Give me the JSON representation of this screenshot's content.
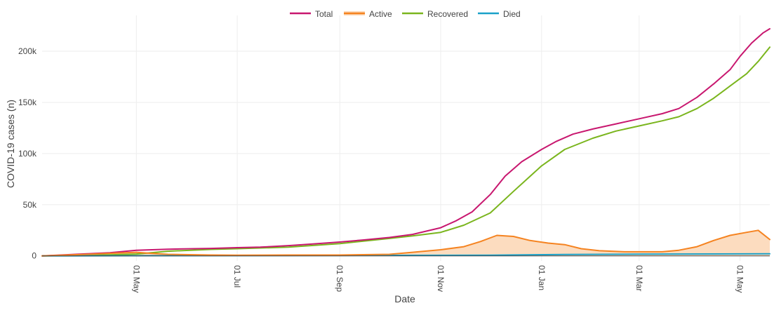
{
  "chart_data": {
    "type": "line",
    "title": "",
    "xlabel": "Date",
    "ylabel": "COVID-19 cases (n)",
    "x_ticks": [
      "01 May",
      "01 Jul",
      "01 Sep",
      "01 Nov",
      "01 Jan",
      "01 Mar",
      "01 May"
    ],
    "x_tick_dates": [
      "2020-05-01",
      "2020-07-01",
      "2020-09-01",
      "2020-11-01",
      "2021-01-01",
      "2021-03-01",
      "2021-05-01"
    ],
    "y_ticks": [
      0,
      50000,
      100000,
      150000,
      200000
    ],
    "y_tick_labels": [
      "0",
      "50k",
      "100k",
      "150k",
      "200k"
    ],
    "xlim": [
      "2020-03-05",
      "2021-05-19"
    ],
    "ylim": [
      -5000,
      235000
    ],
    "grid": true,
    "legend_position": "top-center",
    "colors": {
      "Total": "#c8176f",
      "Active": "#f58320",
      "Active_fill": "#fcd8b8",
      "Recovered": "#7ab51d",
      "Died": "#1aa1c9"
    },
    "series": [
      {
        "name": "Total",
        "x": [
          "2020-03-05",
          "2020-04-01",
          "2020-04-15",
          "2020-05-01",
          "2020-05-20",
          "2020-06-15",
          "2020-07-01",
          "2020-07-15",
          "2020-08-01",
          "2020-08-15",
          "2020-09-01",
          "2020-09-15",
          "2020-10-01",
          "2020-10-15",
          "2020-11-01",
          "2020-11-10",
          "2020-11-20",
          "2020-12-01",
          "2020-12-10",
          "2020-12-20",
          "2021-01-01",
          "2021-01-10",
          "2021-01-20",
          "2021-02-01",
          "2021-02-15",
          "2021-03-01",
          "2021-03-15",
          "2021-03-25",
          "2021-04-05",
          "2021-04-15",
          "2021-04-25",
          "2021-05-01",
          "2021-05-08",
          "2021-05-15",
          "2021-05-19"
        ],
        "y": [
          0,
          2000,
          3000,
          5500,
          6500,
          7300,
          8000,
          8500,
          10000,
          11500,
          13500,
          15500,
          18000,
          21000,
          27500,
          34000,
          43000,
          60000,
          78000,
          92000,
          104000,
          112000,
          119000,
          124000,
          129000,
          134000,
          139000,
          144000,
          155000,
          168000,
          182000,
          195000,
          208000,
          218000,
          222000
        ]
      },
      {
        "name": "Active",
        "x": [
          "2020-03-05",
          "2020-04-01",
          "2020-04-20",
          "2020-05-01",
          "2020-05-10",
          "2020-05-20",
          "2020-06-15",
          "2020-07-01",
          "2020-08-01",
          "2020-09-01",
          "2020-10-01",
          "2020-10-15",
          "2020-11-01",
          "2020-11-15",
          "2020-11-25",
          "2020-12-05",
          "2020-12-15",
          "2020-12-25",
          "2021-01-05",
          "2021-01-15",
          "2021-01-25",
          "2021-02-05",
          "2021-02-20",
          "2021-03-01",
          "2021-03-15",
          "2021-03-25",
          "2021-04-05",
          "2021-04-15",
          "2021-04-25",
          "2021-05-05",
          "2021-05-12",
          "2021-05-19"
        ],
        "y": [
          0,
          1500,
          2800,
          3500,
          2500,
          1500,
          800,
          700,
          800,
          800,
          1500,
          3500,
          6000,
          9000,
          14000,
          20000,
          19000,
          15000,
          12500,
          11000,
          7000,
          5000,
          4000,
          4000,
          4000,
          5500,
          9000,
          15000,
          20000,
          23000,
          25000,
          16000
        ]
      },
      {
        "name": "Recovered",
        "x": [
          "2020-03-05",
          "2020-04-15",
          "2020-05-01",
          "2020-05-20",
          "2020-06-15",
          "2020-07-01",
          "2020-08-01",
          "2020-09-01",
          "2020-10-01",
          "2020-10-15",
          "2020-11-01",
          "2020-11-15",
          "2020-12-01",
          "2020-12-15",
          "2021-01-01",
          "2021-01-15",
          "2021-02-01",
          "2021-02-15",
          "2021-03-01",
          "2021-03-15",
          "2021-03-25",
          "2021-04-05",
          "2021-04-15",
          "2021-04-25",
          "2021-05-05",
          "2021-05-12",
          "2021-05-19"
        ],
        "y": [
          0,
          1000,
          1800,
          4500,
          6300,
          7000,
          8500,
          12000,
          17000,
          19500,
          23000,
          30000,
          42000,
          63000,
          88000,
          104000,
          115000,
          122000,
          127000,
          132000,
          136000,
          144000,
          154000,
          166000,
          178000,
          190000,
          204000
        ]
      },
      {
        "name": "Died",
        "x": [
          "2020-03-05",
          "2020-06-01",
          "2020-09-01",
          "2020-12-01",
          "2021-01-15",
          "2021-03-01",
          "2021-05-19"
        ],
        "y": [
          0,
          200,
          400,
          700,
          1300,
          1700,
          2000
        ]
      }
    ]
  }
}
